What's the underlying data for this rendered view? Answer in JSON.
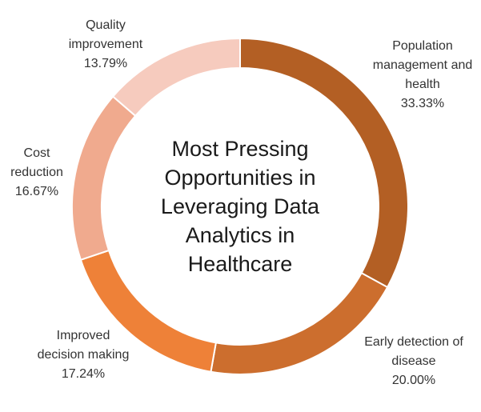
{
  "chart_data": {
    "type": "pie",
    "variant": "donut",
    "title_lines": [
      "Most Pressing",
      "Opportunities in",
      "Leveraging Data",
      "Analytics in",
      "Healthcare"
    ],
    "slices": [
      {
        "label_lines": [
          "Population",
          "management and",
          "health"
        ],
        "value": 33.33,
        "value_label": "33.33%",
        "color": "#B35F24"
      },
      {
        "label_lines": [
          "Early detection of",
          "disease"
        ],
        "value": 20.0,
        "value_label": "20.00%",
        "color": "#CC6E2E"
      },
      {
        "label_lines": [
          "Improved",
          "decision making"
        ],
        "value": 17.24,
        "value_label": "17.24%",
        "color": "#EE8138"
      },
      {
        "label_lines": [
          "Cost",
          "reduction"
        ],
        "value": 16.67,
        "value_label": "16.67%",
        "color": "#F0AA8E"
      },
      {
        "label_lines": [
          "Quality",
          "improvement"
        ],
        "value": 13.79,
        "value_label": "13.79%",
        "color": "#F6CBBE"
      }
    ]
  }
}
